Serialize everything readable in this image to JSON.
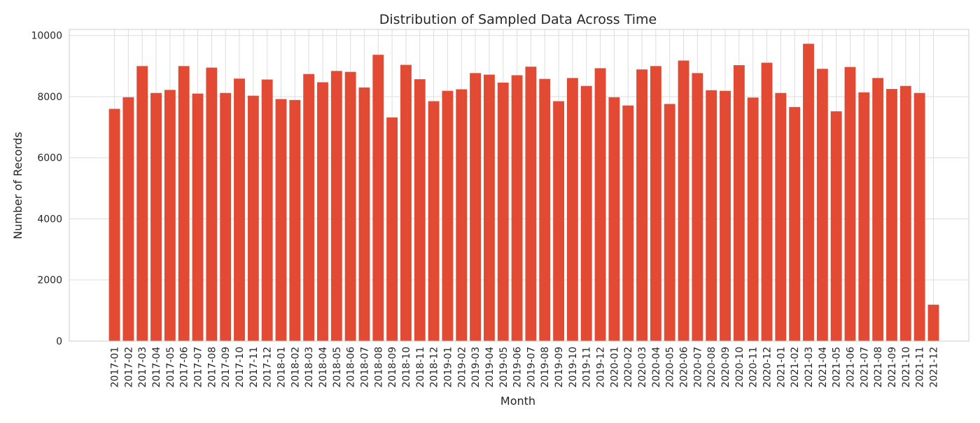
{
  "chart_data": {
    "type": "bar",
    "title": "Distribution of Sampled Data Across Time",
    "xlabel": "Month",
    "ylabel": "Number of Records",
    "ylim": [
      0,
      10200
    ],
    "yticks": [
      0,
      2000,
      4000,
      6000,
      8000,
      10000
    ],
    "grid": true,
    "bar_color": "#E24A33",
    "categories": [
      "2017-01",
      "2017-02",
      "2017-03",
      "2017-04",
      "2017-05",
      "2017-06",
      "2017-07",
      "2017-08",
      "2017-09",
      "2017-10",
      "2017-11",
      "2017-12",
      "2018-01",
      "2018-02",
      "2018-03",
      "2018-04",
      "2018-05",
      "2018-06",
      "2018-07",
      "2018-08",
      "2018-09",
      "2018-10",
      "2018-11",
      "2018-12",
      "2019-01",
      "2019-02",
      "2019-03",
      "2019-04",
      "2019-05",
      "2019-06",
      "2019-07",
      "2019-08",
      "2019-09",
      "2019-10",
      "2019-11",
      "2019-12",
      "2020-01",
      "2020-02",
      "2020-03",
      "2020-04",
      "2020-05",
      "2020-06",
      "2020-07",
      "2020-08",
      "2020-09",
      "2020-10",
      "2020-11",
      "2020-12",
      "2021-01",
      "2021-02",
      "2021-03",
      "2021-04",
      "2021-05",
      "2021-06",
      "2021-07",
      "2021-08",
      "2021-09",
      "2021-10",
      "2021-11",
      "2021-12"
    ],
    "values": [
      7600,
      7980,
      9000,
      8120,
      8220,
      9000,
      8100,
      8950,
      8120,
      8590,
      8030,
      8560,
      7920,
      7890,
      8740,
      8470,
      8840,
      8810,
      8300,
      9370,
      7320,
      9040,
      8570,
      7850,
      8190,
      8240,
      8770,
      8720,
      8460,
      8700,
      8980,
      8580,
      7850,
      8610,
      8350,
      8930,
      7980,
      7710,
      8890,
      9000,
      7760,
      9180,
      8770,
      8210,
      8190,
      9030,
      7970,
      9110,
      8120,
      7660,
      9730,
      8910,
      7520,
      8970,
      8140,
      8610,
      8250,
      8350,
      8120,
      1190
    ]
  }
}
